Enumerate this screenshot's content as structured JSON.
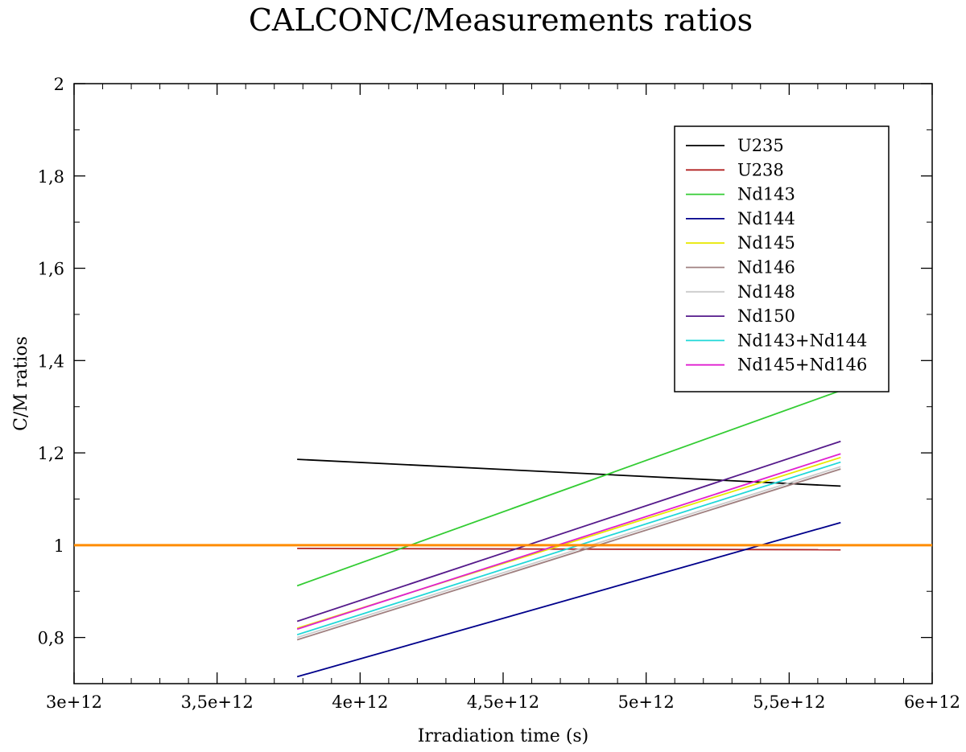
{
  "chart_data": {
    "type": "line",
    "title": "CALCONC/Measurements ratios",
    "xlabel": "Irradiation time (s)",
    "ylabel": "C/M ratios",
    "xlim": [
      3000000000000.0,
      6000000000000.0
    ],
    "ylim": [
      0.7,
      2.0
    ],
    "x_ticks": [
      {
        "value": 3000000000000.0,
        "label": "3e+12"
      },
      {
        "value": 3500000000000.0,
        "label": "3,5e+12"
      },
      {
        "value": 4000000000000.0,
        "label": "4e+12"
      },
      {
        "value": 4500000000000.0,
        "label": "4,5e+12"
      },
      {
        "value": 5000000000000.0,
        "label": "5e+12"
      },
      {
        "value": 5500000000000.0,
        "label": "5,5e+12"
      },
      {
        "value": 6000000000000.0,
        "label": "6e+12"
      }
    ],
    "y_ticks": [
      {
        "value": 0.8,
        "label": "0,8"
      },
      {
        "value": 1.0,
        "label": "1"
      },
      {
        "value": 1.2,
        "label": "1,2"
      },
      {
        "value": 1.4,
        "label": "1,4"
      },
      {
        "value": 1.6,
        "label": "1,6"
      },
      {
        "value": 1.8,
        "label": "1,8"
      },
      {
        "value": 2.0,
        "label": "2"
      }
    ],
    "grid": false,
    "legend_position": "top-right",
    "reference_line": {
      "y": 1.0,
      "color": "#ff8c00"
    },
    "series": [
      {
        "name": "U235",
        "color": "#000000",
        "x": [
          3780000000000.0,
          5680000000000.0
        ],
        "y": [
          1.186,
          1.128
        ]
      },
      {
        "name": "U238",
        "color": "#b22222",
        "x": [
          3780000000000.0,
          5680000000000.0
        ],
        "y": [
          0.993,
          0.99
        ]
      },
      {
        "name": "Nd143",
        "color": "#33cc33",
        "x": [
          3780000000000.0,
          5680000000000.0
        ],
        "y": [
          0.912,
          1.335
        ]
      },
      {
        "name": "Nd144",
        "color": "#00008b",
        "x": [
          3780000000000.0,
          5680000000000.0
        ],
        "y": [
          0.715,
          1.049
        ]
      },
      {
        "name": "Nd145",
        "color": "#e8e800",
        "x": [
          3780000000000.0,
          5680000000000.0
        ],
        "y": [
          0.82,
          1.19
        ]
      },
      {
        "name": "Nd146",
        "color": "#a08080",
        "x": [
          3780000000000.0,
          5680000000000.0
        ],
        "y": [
          0.795,
          1.165
        ]
      },
      {
        "name": "Nd148",
        "color": "#cccccc",
        "x": [
          3780000000000.0,
          5680000000000.0
        ],
        "y": [
          0.8,
          1.17
        ]
      },
      {
        "name": "Nd150",
        "color": "#551a8b",
        "x": [
          3780000000000.0,
          5680000000000.0
        ],
        "y": [
          0.835,
          1.225
        ]
      },
      {
        "name": "Nd143+Nd144",
        "color": "#20d8d8",
        "x": [
          3780000000000.0,
          5680000000000.0
        ],
        "y": [
          0.806,
          1.18
        ]
      },
      {
        "name": "Nd145+Nd146",
        "color": "#e020d0",
        "x": [
          3780000000000.0,
          5680000000000.0
        ],
        "y": [
          0.818,
          1.198
        ]
      }
    ]
  }
}
